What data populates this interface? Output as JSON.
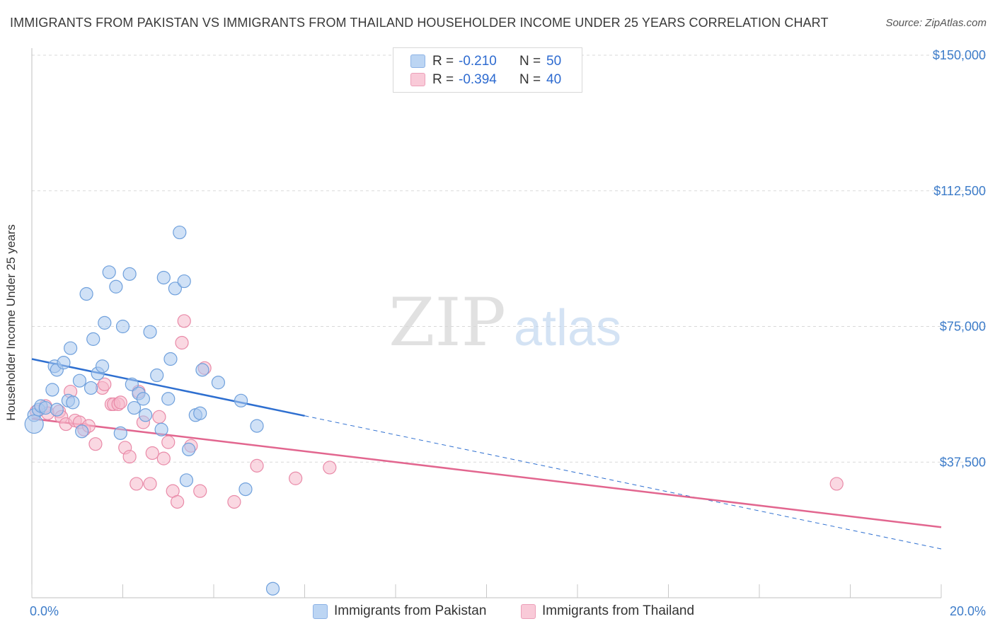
{
  "title": "IMMIGRANTS FROM PAKISTAN VS IMMIGRANTS FROM THAILAND HOUSEHOLDER INCOME UNDER 25 YEARS CORRELATION CHART",
  "source": "Source: ZipAtlas.com",
  "watermark": {
    "zip": "ZIP",
    "atlas": "atlas"
  },
  "legend": {
    "r_label": "R =",
    "n_label": "N =",
    "pakistan": {
      "r": "-0.210",
      "n": "50"
    },
    "thailand": {
      "r": "-0.394",
      "n": "40"
    }
  },
  "colors": {
    "pakistan_fill": "#a9c8ef",
    "pakistan_stroke": "#6fa0dc",
    "pakistan_line": "#2e6fd0",
    "thailand_fill": "#f5b8cb",
    "thailand_stroke": "#e98aa8",
    "thailand_line": "#e2668f",
    "tick_text": "#3d7cc9",
    "grid": "#d9d9d9"
  },
  "chart_data": {
    "type": "scatter",
    "title": "IMMIGRANTS FROM PAKISTAN VS IMMIGRANTS FROM THAILAND HOUSEHOLDER INCOME UNDER 25 YEARS CORRELATION CHART",
    "xlabel": "",
    "ylabel": "Householder Income Under 25 years",
    "xlim": [
      0,
      20
    ],
    "ylim": [
      0,
      155000
    ],
    "x_tick_labels": [
      "0.0%",
      "20.0%"
    ],
    "y_ticks": [
      37500,
      75000,
      112500,
      150000
    ],
    "y_tick_labels": [
      "$37,500",
      "$75,000",
      "$112,500",
      "$150,000"
    ],
    "grid": true,
    "legend_position": "top-center",
    "series": [
      {
        "name": "Immigrants from Pakistan",
        "r": -0.21,
        "n": 50,
        "trend": {
          "x0": 0,
          "y0": 66000,
          "x1": 6,
          "y1": 50300,
          "dashed_to_x": 20,
          "dashed_to_y": 13500
        },
        "points": [
          [
            0.05,
            50500
          ],
          [
            0.05,
            48000
          ],
          [
            0.15,
            52000
          ],
          [
            0.2,
            53000
          ],
          [
            0.3,
            52500
          ],
          [
            0.45,
            57500
          ],
          [
            0.5,
            64000
          ],
          [
            0.55,
            63000
          ],
          [
            0.7,
            65000
          ],
          [
            0.8,
            54500
          ],
          [
            0.85,
            69000
          ],
          [
            0.9,
            54000
          ],
          [
            1.05,
            60000
          ],
          [
            1.1,
            46000
          ],
          [
            1.2,
            84000
          ],
          [
            1.3,
            58000
          ],
          [
            1.35,
            71500
          ],
          [
            1.45,
            62000
          ],
          [
            1.55,
            64000
          ],
          [
            1.6,
            76000
          ],
          [
            1.7,
            90000
          ],
          [
            1.85,
            86000
          ],
          [
            1.95,
            45500
          ],
          [
            2.0,
            75000
          ],
          [
            2.15,
            89500
          ],
          [
            2.2,
            59000
          ],
          [
            2.25,
            52500
          ],
          [
            2.35,
            56500
          ],
          [
            2.45,
            55000
          ],
          [
            2.5,
            50500
          ],
          [
            2.6,
            73500
          ],
          [
            2.75,
            61500
          ],
          [
            2.85,
            46500
          ],
          [
            2.9,
            88500
          ],
          [
            3.0,
            55000
          ],
          [
            3.05,
            66000
          ],
          [
            3.15,
            85500
          ],
          [
            3.25,
            101000
          ],
          [
            3.35,
            87500
          ],
          [
            3.4,
            32500
          ],
          [
            3.45,
            41000
          ],
          [
            3.6,
            50500
          ],
          [
            3.7,
            51000
          ],
          [
            3.75,
            63000
          ],
          [
            4.1,
            59500
          ],
          [
            4.6,
            54500
          ],
          [
            4.7,
            30000
          ],
          [
            4.95,
            47500
          ],
          [
            5.3,
            2500
          ],
          [
            0.55,
            52000
          ]
        ]
      },
      {
        "name": "Immigrants from Thailand",
        "r": -0.394,
        "n": 40,
        "trend": {
          "x0": 0,
          "y0": 49500,
          "x1": 20,
          "y1": 19500
        },
        "points": [
          [
            0.1,
            51500
          ],
          [
            0.3,
            53000
          ],
          [
            0.35,
            51000
          ],
          [
            0.6,
            51500
          ],
          [
            0.65,
            50000
          ],
          [
            0.75,
            48000
          ],
          [
            0.85,
            57000
          ],
          [
            0.95,
            49000
          ],
          [
            1.05,
            48500
          ],
          [
            1.15,
            46500
          ],
          [
            1.25,
            47500
          ],
          [
            1.4,
            42500
          ],
          [
            1.55,
            58000
          ],
          [
            1.6,
            59000
          ],
          [
            1.75,
            53500
          ],
          [
            1.8,
            53500
          ],
          [
            1.9,
            53500
          ],
          [
            1.95,
            54000
          ],
          [
            2.05,
            41500
          ],
          [
            2.15,
            39000
          ],
          [
            2.3,
            31500
          ],
          [
            2.35,
            57000
          ],
          [
            2.45,
            48500
          ],
          [
            2.6,
            31500
          ],
          [
            2.65,
            40000
          ],
          [
            2.8,
            50000
          ],
          [
            2.9,
            38500
          ],
          [
            3.0,
            43000
          ],
          [
            3.1,
            29500
          ],
          [
            3.2,
            26500
          ],
          [
            3.3,
            70500
          ],
          [
            3.35,
            76500
          ],
          [
            3.5,
            42000
          ],
          [
            3.7,
            29500
          ],
          [
            3.8,
            63500
          ],
          [
            4.45,
            26500
          ],
          [
            4.95,
            36500
          ],
          [
            5.8,
            33000
          ],
          [
            6.55,
            36000
          ],
          [
            17.7,
            31500
          ]
        ]
      }
    ]
  },
  "bottom_legend": {
    "pakistan_label": "Immigrants from Pakistan",
    "thailand_label": "Immigrants from Thailand"
  }
}
